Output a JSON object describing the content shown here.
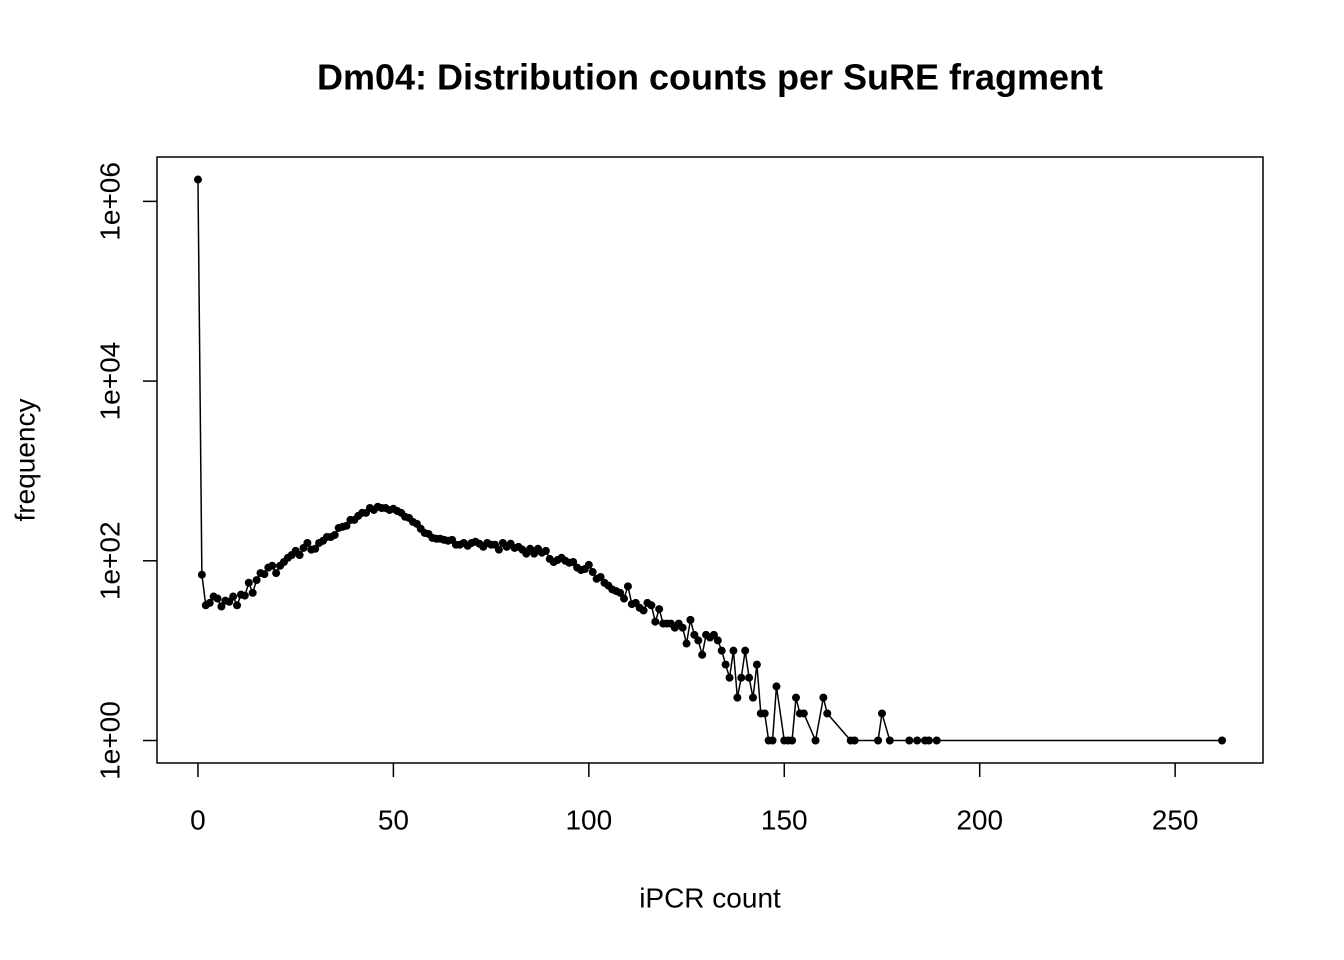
{
  "chart_data": {
    "type": "line",
    "title": "Dm04: Distribution counts per SuRE fragment",
    "xlabel": "iPCR count",
    "ylabel": "frequency",
    "color": "#000000",
    "markers": true,
    "ylog": true,
    "x": [
      0,
      1,
      2,
      3,
      4,
      5,
      6,
      7,
      8,
      9,
      10,
      11,
      12,
      13,
      14,
      15,
      16,
      17,
      18,
      19,
      20,
      21,
      22,
      23,
      24,
      25,
      26,
      27,
      28,
      29,
      30,
      31,
      32,
      33,
      34,
      35,
      36,
      37,
      38,
      39,
      40,
      41,
      42,
      43,
      44,
      45,
      46,
      47,
      48,
      49,
      50,
      51,
      52,
      53,
      54,
      55,
      56,
      57,
      58,
      59,
      60,
      61,
      62,
      63,
      64,
      65,
      66,
      67,
      68,
      69,
      70,
      71,
      72,
      73,
      74,
      75,
      76,
      77,
      78,
      79,
      80,
      81,
      82,
      83,
      84,
      85,
      86,
      87,
      88,
      89,
      90,
      91,
      92,
      93,
      94,
      95,
      96,
      97,
      98,
      99,
      100,
      101,
      102,
      103,
      104,
      105,
      106,
      107,
      108,
      109,
      110,
      111,
      112,
      113,
      114,
      115,
      116,
      117,
      118,
      119,
      120,
      121,
      122,
      123,
      124,
      125,
      126,
      127,
      128,
      129,
      130,
      131,
      132,
      133,
      134,
      135,
      136,
      137,
      138,
      139,
      140,
      141,
      142,
      143,
      144,
      145,
      146,
      147,
      148,
      150,
      151,
      152,
      153,
      154,
      155,
      158,
      160,
      161,
      167,
      168,
      174,
      175,
      177,
      182,
      184,
      186,
      187,
      189,
      262
    ],
    "values": [
      1750000,
      70,
      32,
      34,
      40,
      38,
      31,
      36,
      35,
      40,
      32,
      42,
      41,
      57,
      44,
      61,
      73,
      71,
      84,
      88,
      73,
      88,
      97,
      108,
      116,
      129,
      116,
      139,
      158,
      133,
      136,
      158,
      167,
      184,
      184,
      194,
      232,
      239,
      245,
      285,
      285,
      316,
      342,
      342,
      387,
      368,
      399,
      387,
      387,
      368,
      379,
      358,
      342,
      309,
      300,
      271,
      258,
      227,
      204,
      199,
      180,
      176,
      176,
      171,
      167,
      171,
      151,
      151,
      158,
      147,
      158,
      163,
      155,
      143,
      158,
      151,
      151,
      133,
      158,
      143,
      155,
      139,
      143,
      133,
      120,
      136,
      120,
      136,
      123,
      129,
      105,
      97,
      102,
      108,
      100,
      95,
      97,
      84,
      79,
      81,
      90,
      75,
      63,
      66,
      57,
      53,
      48,
      46,
      44,
      38,
      52,
      33,
      34,
      30,
      28,
      34,
      32,
      21,
      29,
      20,
      20,
      20,
      18,
      20,
      18,
      12,
      22,
      15,
      13,
      9,
      15,
      14,
      15,
      13,
      10,
      7,
      5,
      10,
      3,
      5,
      10,
      5,
      3,
      7,
      2,
      2,
      1,
      1,
      4,
      1,
      1,
      1,
      3,
      2,
      2,
      1,
      3,
      2,
      1,
      1,
      1,
      2,
      1,
      1,
      1,
      1,
      1,
      1,
      1
    ],
    "xlim": [
      -10.48,
      272.48
    ],
    "xticks": [
      0,
      50,
      100,
      150,
      200,
      250
    ],
    "ylim": [
      0.562,
      3118000
    ],
    "yticks": [
      {
        "value": 1,
        "label": "1e+00"
      },
      {
        "value": 100,
        "label": "1e+02"
      },
      {
        "value": 10000,
        "label": "1e+04"
      },
      {
        "value": 1000000,
        "label": "1e+06"
      }
    ]
  }
}
